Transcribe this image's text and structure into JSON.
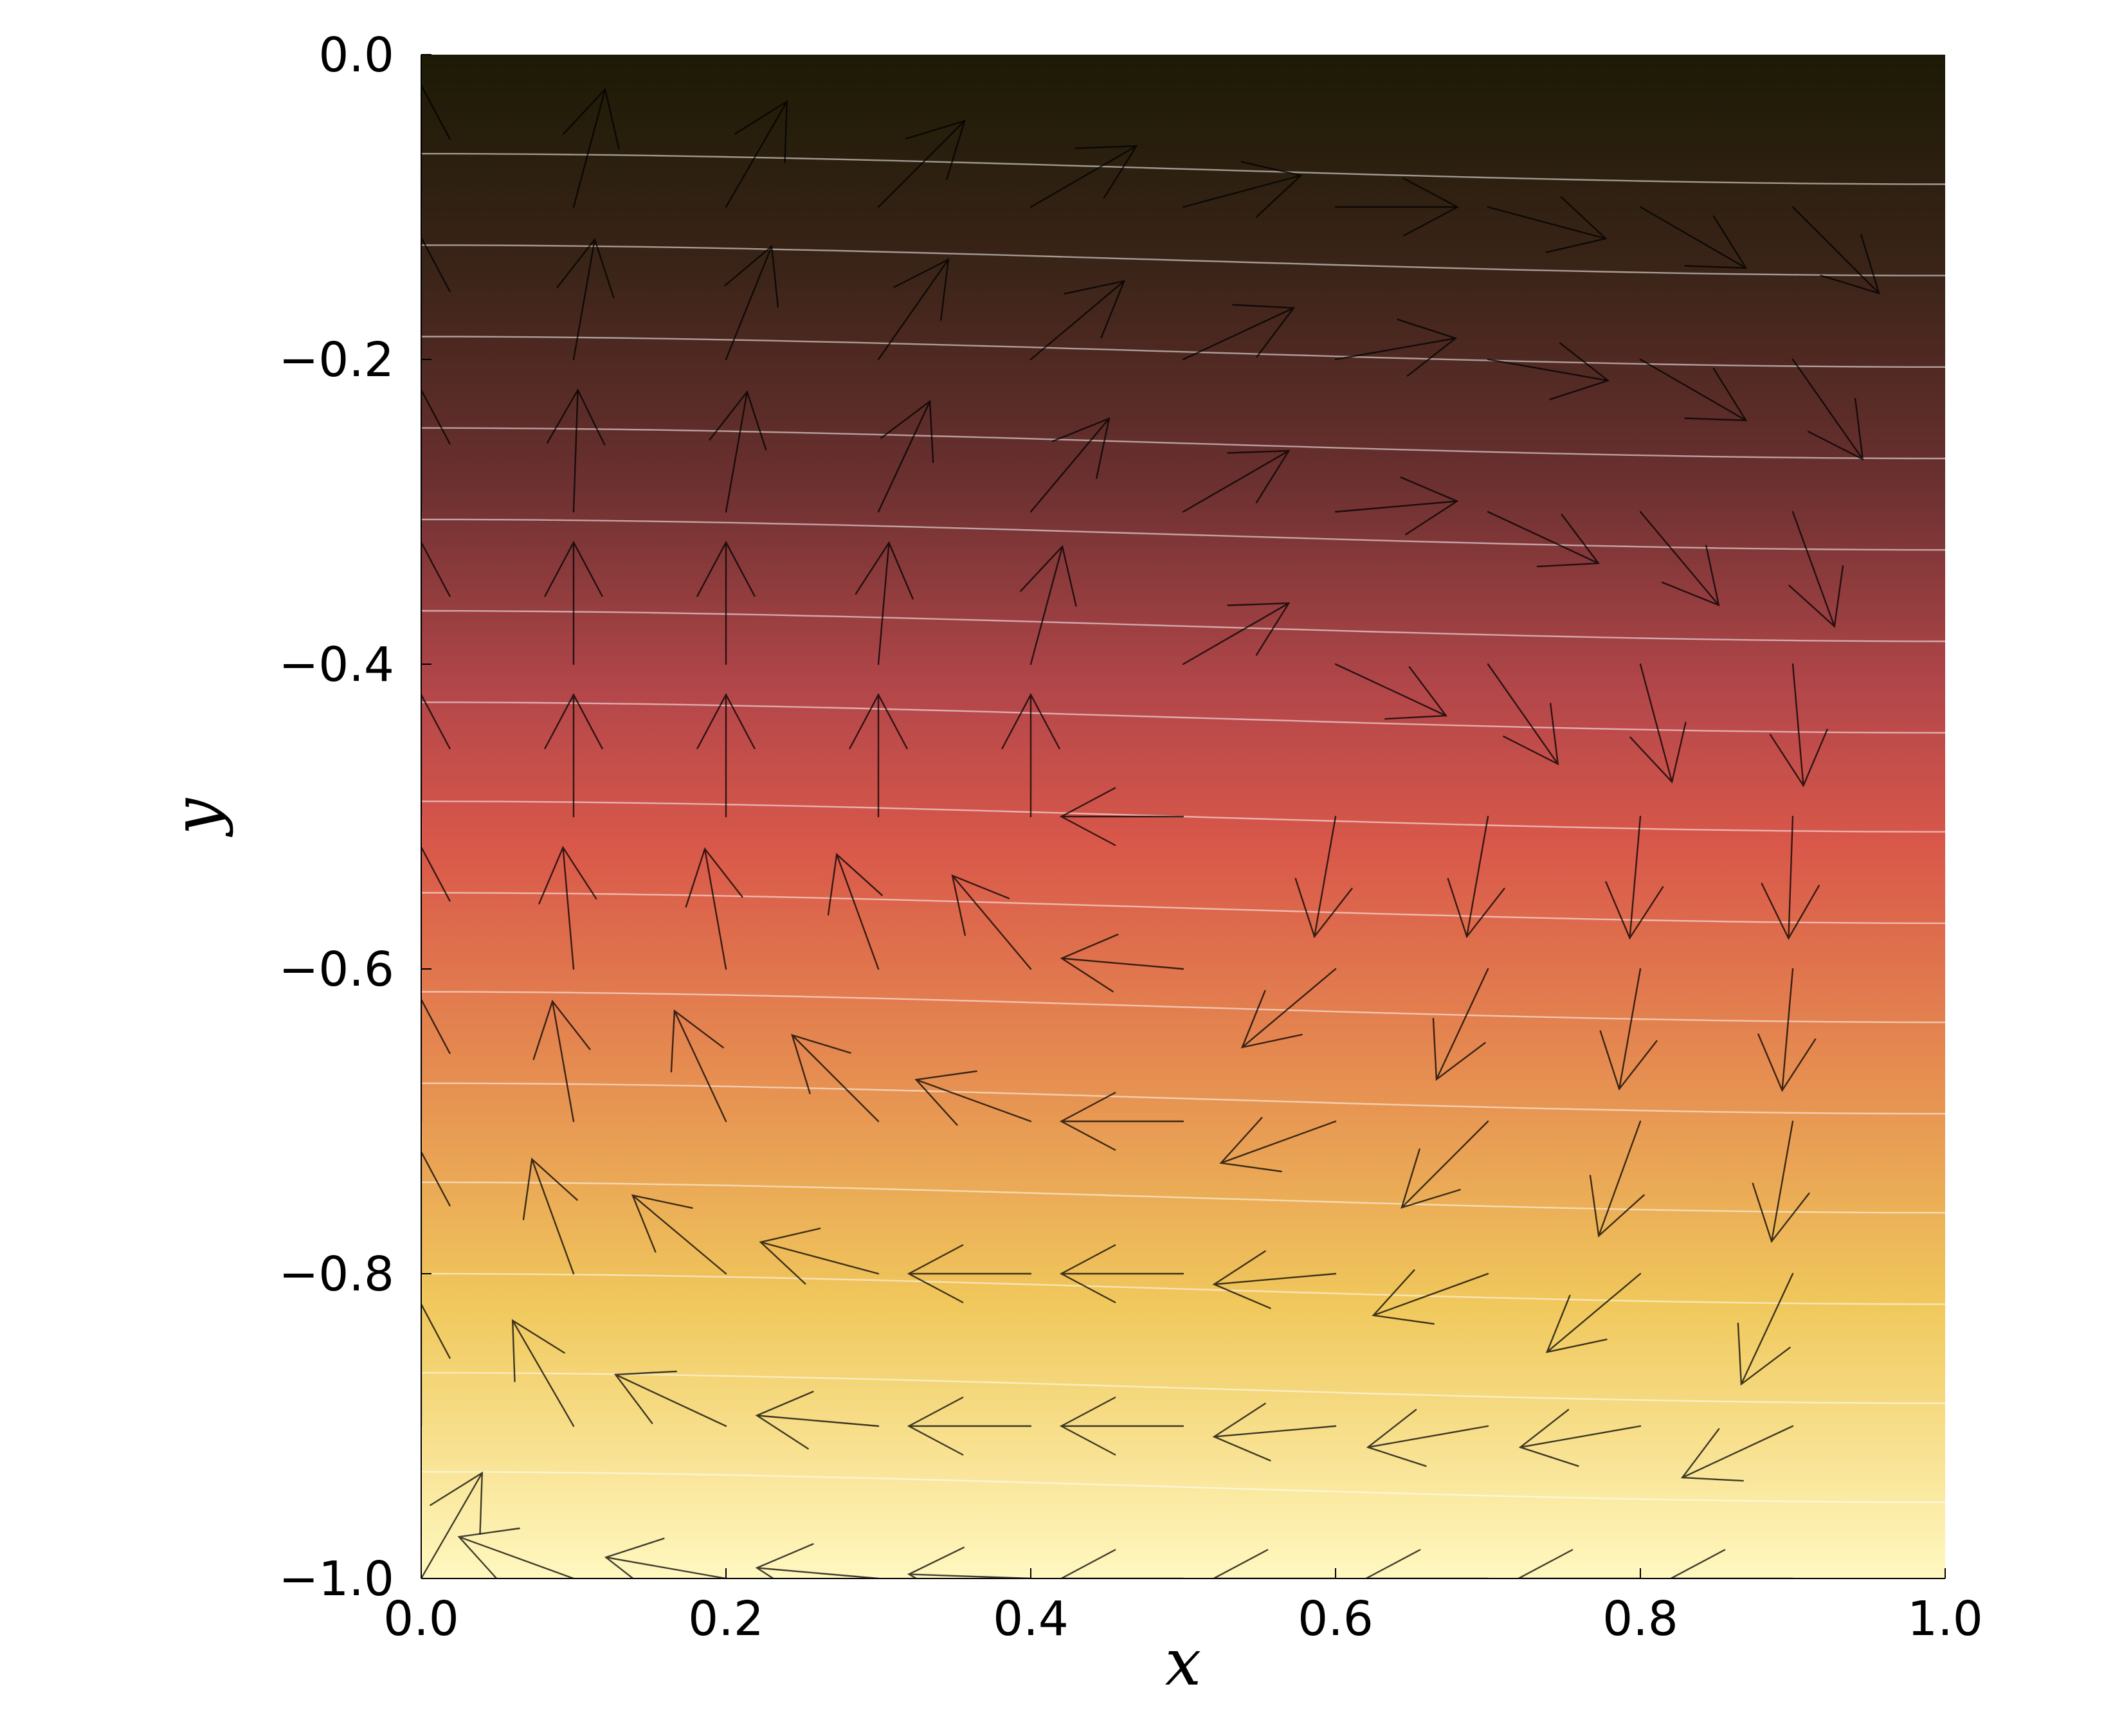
{
  "chart_data": {
    "type": "heatmap",
    "title": "",
    "xlabel": "x",
    "ylabel": "y",
    "xlim": [
      0.0,
      1.0
    ],
    "ylim": [
      -1.0,
      0.0
    ],
    "x_ticks": [
      "0.0",
      "0.2",
      "0.4",
      "0.6",
      "0.8",
      "1.0"
    ],
    "y_ticks": [
      "0.0",
      "−0.2",
      "−0.4",
      "−0.6",
      "−0.8",
      "−1.0"
    ],
    "x_tick_values": [
      0.0,
      0.2,
      0.4,
      0.6,
      0.8,
      1.0
    ],
    "y_tick_values": [
      0.0,
      -0.2,
      -0.4,
      -0.6,
      -0.8,
      -1.0
    ],
    "grid": false,
    "colormap": [
      "#1c1a05",
      "#3a2418",
      "#6b3030",
      "#b4474a",
      "#d9584a",
      "#e58a50",
      "#f0c85c",
      "#fff8c0"
    ],
    "contour_line_color": "#ffffff",
    "arrow_color": "#000000",
    "contour_levels_y_at_x0": [
      -0.065,
      -0.125,
      -0.185,
      -0.245,
      -0.305,
      -0.365,
      -0.425,
      -0.49,
      -0.55,
      -0.615,
      -0.675,
      -0.74,
      -0.8,
      -0.865,
      -0.93
    ],
    "contour_drop_at_x1": 0.02,
    "quiver": {
      "x": [
        0.0,
        0.1,
        0.2,
        0.3,
        0.4,
        0.5,
        0.6,
        0.7,
        0.8,
        0.9
      ],
      "y": [
        -0.1,
        -0.2,
        -0.3,
        -0.4,
        -0.5,
        -0.6,
        -0.7,
        -0.8,
        -0.9,
        -1.0
      ],
      "angles_deg": [
        [
          90,
          75,
          60,
          45,
          30,
          15,
          0,
          -15,
          -30,
          -45
        ],
        [
          90,
          80,
          68,
          55,
          40,
          25,
          10,
          -10,
          -30,
          -55
        ],
        [
          90,
          88,
          80,
          65,
          50,
          30,
          5,
          -25,
          -50,
          -70
        ],
        [
          90,
          90,
          90,
          85,
          75,
          30,
          -25,
          -55,
          -75,
          -85
        ],
        [
          90,
          90,
          90,
          90,
          90,
          180,
          -100,
          -100,
          -95,
          -92
        ],
        [
          90,
          95,
          100,
          110,
          130,
          175,
          -140,
          -115,
          -100,
          -95
        ],
        [
          90,
          100,
          115,
          135,
          160,
          180,
          -160,
          -135,
          -110,
          -100
        ],
        [
          90,
          110,
          140,
          165,
          180,
          180,
          185,
          -160,
          -140,
          -115
        ],
        [
          90,
          120,
          155,
          175,
          180,
          180,
          185,
          190,
          -170,
          -155
        ],
        [
          60,
          160,
          170,
          175,
          178,
          180,
          180,
          180,
          180,
          180
        ]
      ],
      "normalized_length": 0.08
    }
  }
}
